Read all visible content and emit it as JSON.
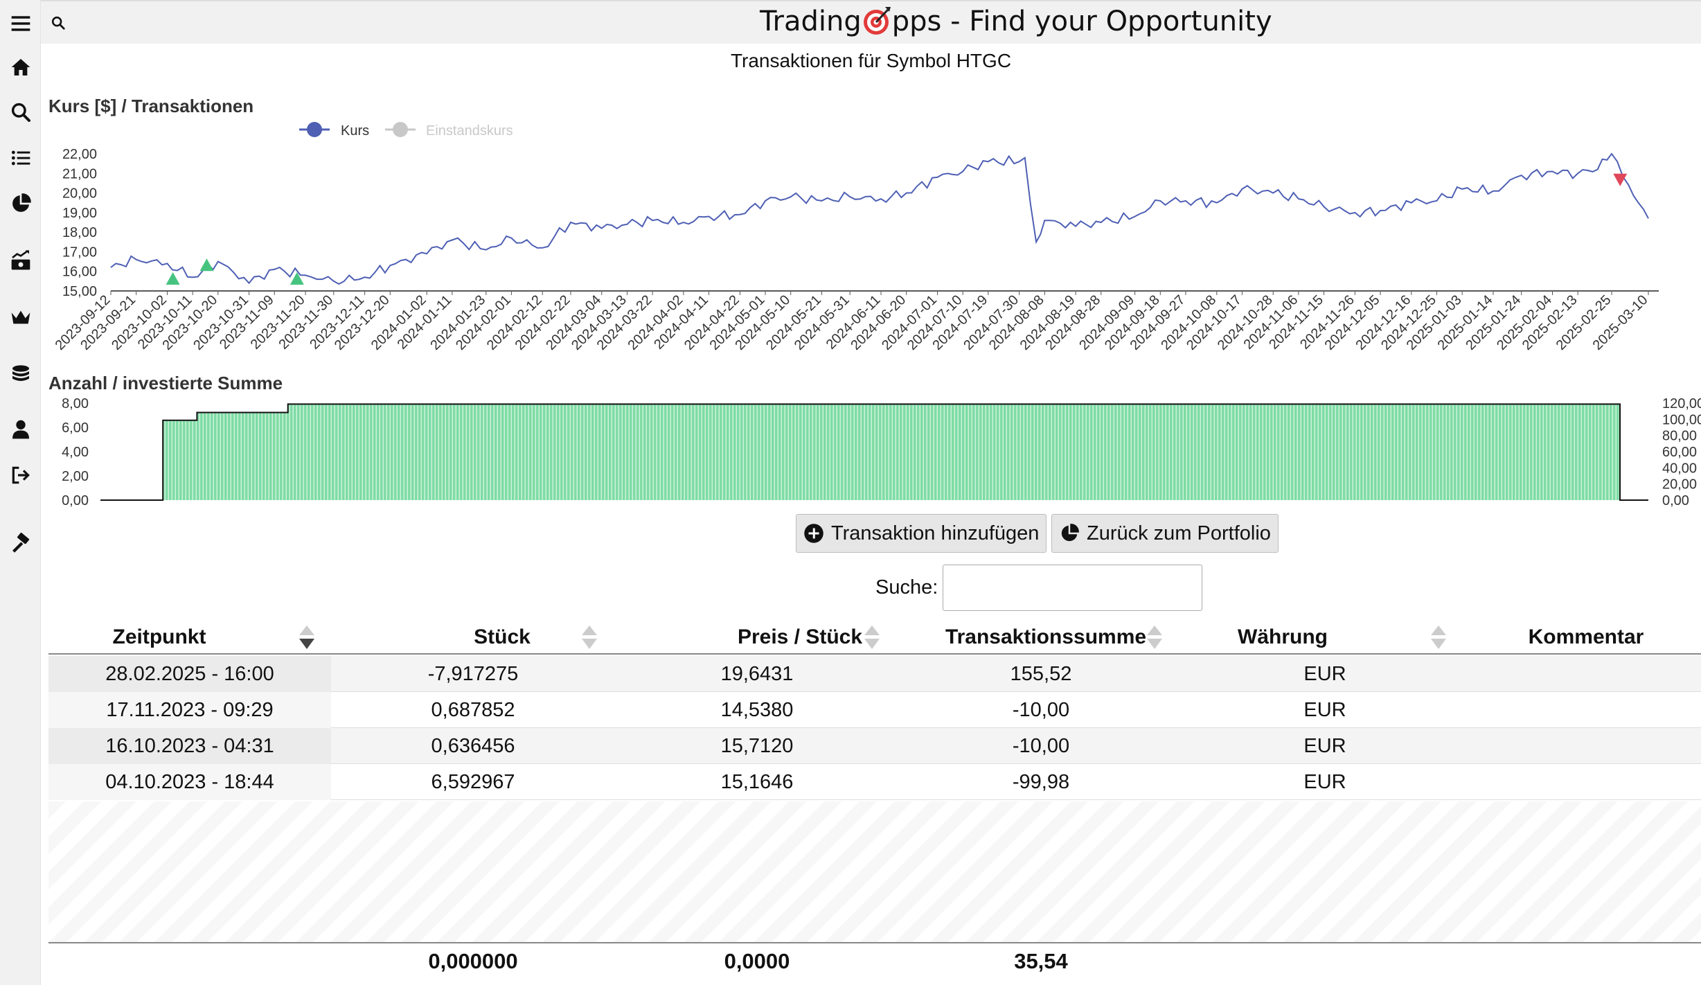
{
  "app": {
    "title_part1": "Trading",
    "title_part2": "pps - Find your Opportunity"
  },
  "sidebar": {
    "items": [
      {
        "name": "menu-icon"
      },
      {
        "name": "home-icon"
      },
      {
        "name": "search-icon"
      },
      {
        "name": "list-icon"
      },
      {
        "name": "pie-chart-icon"
      },
      {
        "name": "money-growth-icon"
      },
      {
        "name": "crown-icon"
      },
      {
        "name": "coins-icon"
      },
      {
        "name": "user-icon"
      },
      {
        "name": "logout-icon"
      },
      {
        "name": "hammer-icon"
      }
    ]
  },
  "page": {
    "title": "Transaktionen für Symbol HTGC"
  },
  "chart_data": [
    {
      "type": "line",
      "title": "Kurs [$] / Transaktionen",
      "legend": [
        "Kurs",
        "Einstandskurs"
      ],
      "legend_placement": "top-left",
      "ylim": [
        15,
        22
      ],
      "yticks": [
        "22,00",
        "21,00",
        "20,00",
        "19,00",
        "18,00",
        "17,00",
        "16,00",
        "15,00"
      ],
      "xticks": [
        "2023-09-12",
        "2023-09-21",
        "2023-10-02",
        "2023-10-11",
        "2023-10-20",
        "2023-10-31",
        "2023-11-09",
        "2023-11-20",
        "2023-11-30",
        "2023-12-11",
        "2023-12-20",
        "2024-01-02",
        "2024-01-11",
        "2024-01-23",
        "2024-02-01",
        "2024-02-12",
        "2024-02-22",
        "2024-03-04",
        "2024-03-13",
        "2024-03-22",
        "2024-04-02",
        "2024-04-11",
        "2024-04-22",
        "2024-05-01",
        "2024-05-10",
        "2024-05-21",
        "2024-05-31",
        "2024-06-11",
        "2024-06-20",
        "2024-07-01",
        "2024-07-10",
        "2024-07-19",
        "2024-07-30",
        "2024-08-08",
        "2024-08-19",
        "2024-08-28",
        "2024-09-09",
        "2024-09-18",
        "2024-09-27",
        "2024-10-08",
        "2024-10-17",
        "2024-10-28",
        "2024-11-06",
        "2024-11-15",
        "2024-11-26",
        "2024-12-05",
        "2024-12-16",
        "2024-12-25",
        "2025-01-03",
        "2025-01-14",
        "2025-01-24",
        "2025-02-04",
        "2025-02-13",
        "2025-02-25",
        "2025-03-10"
      ],
      "series": [
        {
          "name": "Kurs",
          "color": "#4e5fb4",
          "x": [
            "2023-09-12",
            "2023-09-21",
            "2023-10-02",
            "2023-10-11",
            "2023-10-20",
            "2023-10-31",
            "2023-11-09",
            "2023-11-20",
            "2023-11-30",
            "2023-12-11",
            "2023-12-20",
            "2024-01-02",
            "2024-01-11",
            "2024-01-23",
            "2024-02-01",
            "2024-02-12",
            "2024-02-22",
            "2024-03-04",
            "2024-03-13",
            "2024-03-22",
            "2024-04-02",
            "2024-04-11",
            "2024-04-22",
            "2024-05-01",
            "2024-05-10",
            "2024-05-21",
            "2024-05-31",
            "2024-06-11",
            "2024-06-20",
            "2024-07-01",
            "2024-07-10",
            "2024-07-19",
            "2024-07-30",
            "2024-08-01",
            "2024-08-05",
            "2024-08-08",
            "2024-08-19",
            "2024-08-28",
            "2024-09-09",
            "2024-09-18",
            "2024-09-27",
            "2024-10-08",
            "2024-10-17",
            "2024-10-28",
            "2024-11-06",
            "2024-11-15",
            "2024-11-26",
            "2024-12-05",
            "2024-12-16",
            "2024-12-25",
            "2025-01-03",
            "2025-01-14",
            "2025-01-24",
            "2025-02-04",
            "2025-02-13",
            "2025-02-20",
            "2025-02-25",
            "2025-03-03",
            "2025-03-10"
          ],
          "values": [
            16.2,
            16.6,
            16.4,
            15.7,
            16.5,
            15.4,
            16.1,
            15.8,
            15.5,
            15.7,
            16.3,
            16.9,
            17.6,
            17.1,
            17.7,
            17.2,
            18.5,
            18.2,
            18.4,
            18.6,
            18.5,
            18.8,
            18.9,
            19.6,
            19.8,
            19.6,
            19.8,
            19.7,
            20.0,
            20.8,
            21.1,
            21.6,
            21.6,
            21.8,
            17.5,
            18.6,
            18.3,
            18.5,
            18.8,
            19.6,
            19.6,
            19.5,
            20.2,
            20.0,
            19.7,
            19.3,
            19.0,
            19.1,
            19.5,
            19.6,
            20.2,
            20.1,
            20.9,
            21.1,
            21.0,
            21.2,
            22.0,
            20.4,
            18.7
          ]
        },
        {
          "name": "Einstandskurs",
          "color": "#c8c8c8",
          "values": []
        }
      ],
      "markers": [
        {
          "x": "2023-10-04",
          "y": 15.6,
          "kind": "buy",
          "color": "#46c47f"
        },
        {
          "x": "2023-10-16",
          "y": 16.3,
          "kind": "buy",
          "color": "#46c47f"
        },
        {
          "x": "2023-11-17",
          "y": 15.6,
          "kind": "buy",
          "color": "#46c47f"
        },
        {
          "x": "2025-02-28",
          "y": 20.7,
          "kind": "sell",
          "color": "#e0475a"
        }
      ]
    },
    {
      "type": "area",
      "title": "Anzahl / investierte Summe",
      "ylim": [
        0,
        8
      ],
      "yticks": [
        "8,00",
        "6,00",
        "4,00",
        "2,00",
        "0,00"
      ],
      "y2ticks": [
        "120,00",
        "100,00",
        "80,00",
        "60,00",
        "40,00",
        "20,00",
        "0,00"
      ],
      "series": [
        {
          "name": "Anzahl",
          "color": "#7fdca5",
          "steps": [
            {
              "from": "2023-09-12",
              "to": "2023-10-04",
              "value": 0
            },
            {
              "from": "2023-10-04",
              "to": "2023-10-16",
              "value": 6.59
            },
            {
              "from": "2023-10-16",
              "to": "2023-11-17",
              "value": 7.23
            },
            {
              "from": "2023-11-17",
              "to": "2025-02-28",
              "value": 7.92
            },
            {
              "from": "2025-02-28",
              "to": "2025-03-10",
              "value": 0
            }
          ]
        }
      ]
    }
  ],
  "buttons": {
    "add_transaction": "Transaktion hinzufügen",
    "back_to_portfolio": "Zurück zum Portfolio"
  },
  "search": {
    "label": "Suche:",
    "value": ""
  },
  "table": {
    "columns": [
      "Zeitpunkt",
      "Stück",
      "Preis / Stück",
      "Transaktionssumme",
      "Währung",
      "Kommentar"
    ],
    "rows": [
      [
        "28.02.2025 - 16:00",
        "-7,917275",
        "19,6431",
        "155,52",
        "EUR",
        ""
      ],
      [
        "17.11.2023 - 09:29",
        "0,687852",
        "14,5380",
        "-10,00",
        "EUR",
        ""
      ],
      [
        "16.10.2023 - 04:31",
        "0,636456",
        "15,7120",
        "-10,00",
        "EUR",
        ""
      ],
      [
        "04.10.2023 - 18:44",
        "6,592967",
        "15,1646",
        "-99,98",
        "EUR",
        ""
      ]
    ],
    "footer": [
      "",
      "0,000000",
      "0,0000",
      "35,54",
      "",
      ""
    ]
  }
}
